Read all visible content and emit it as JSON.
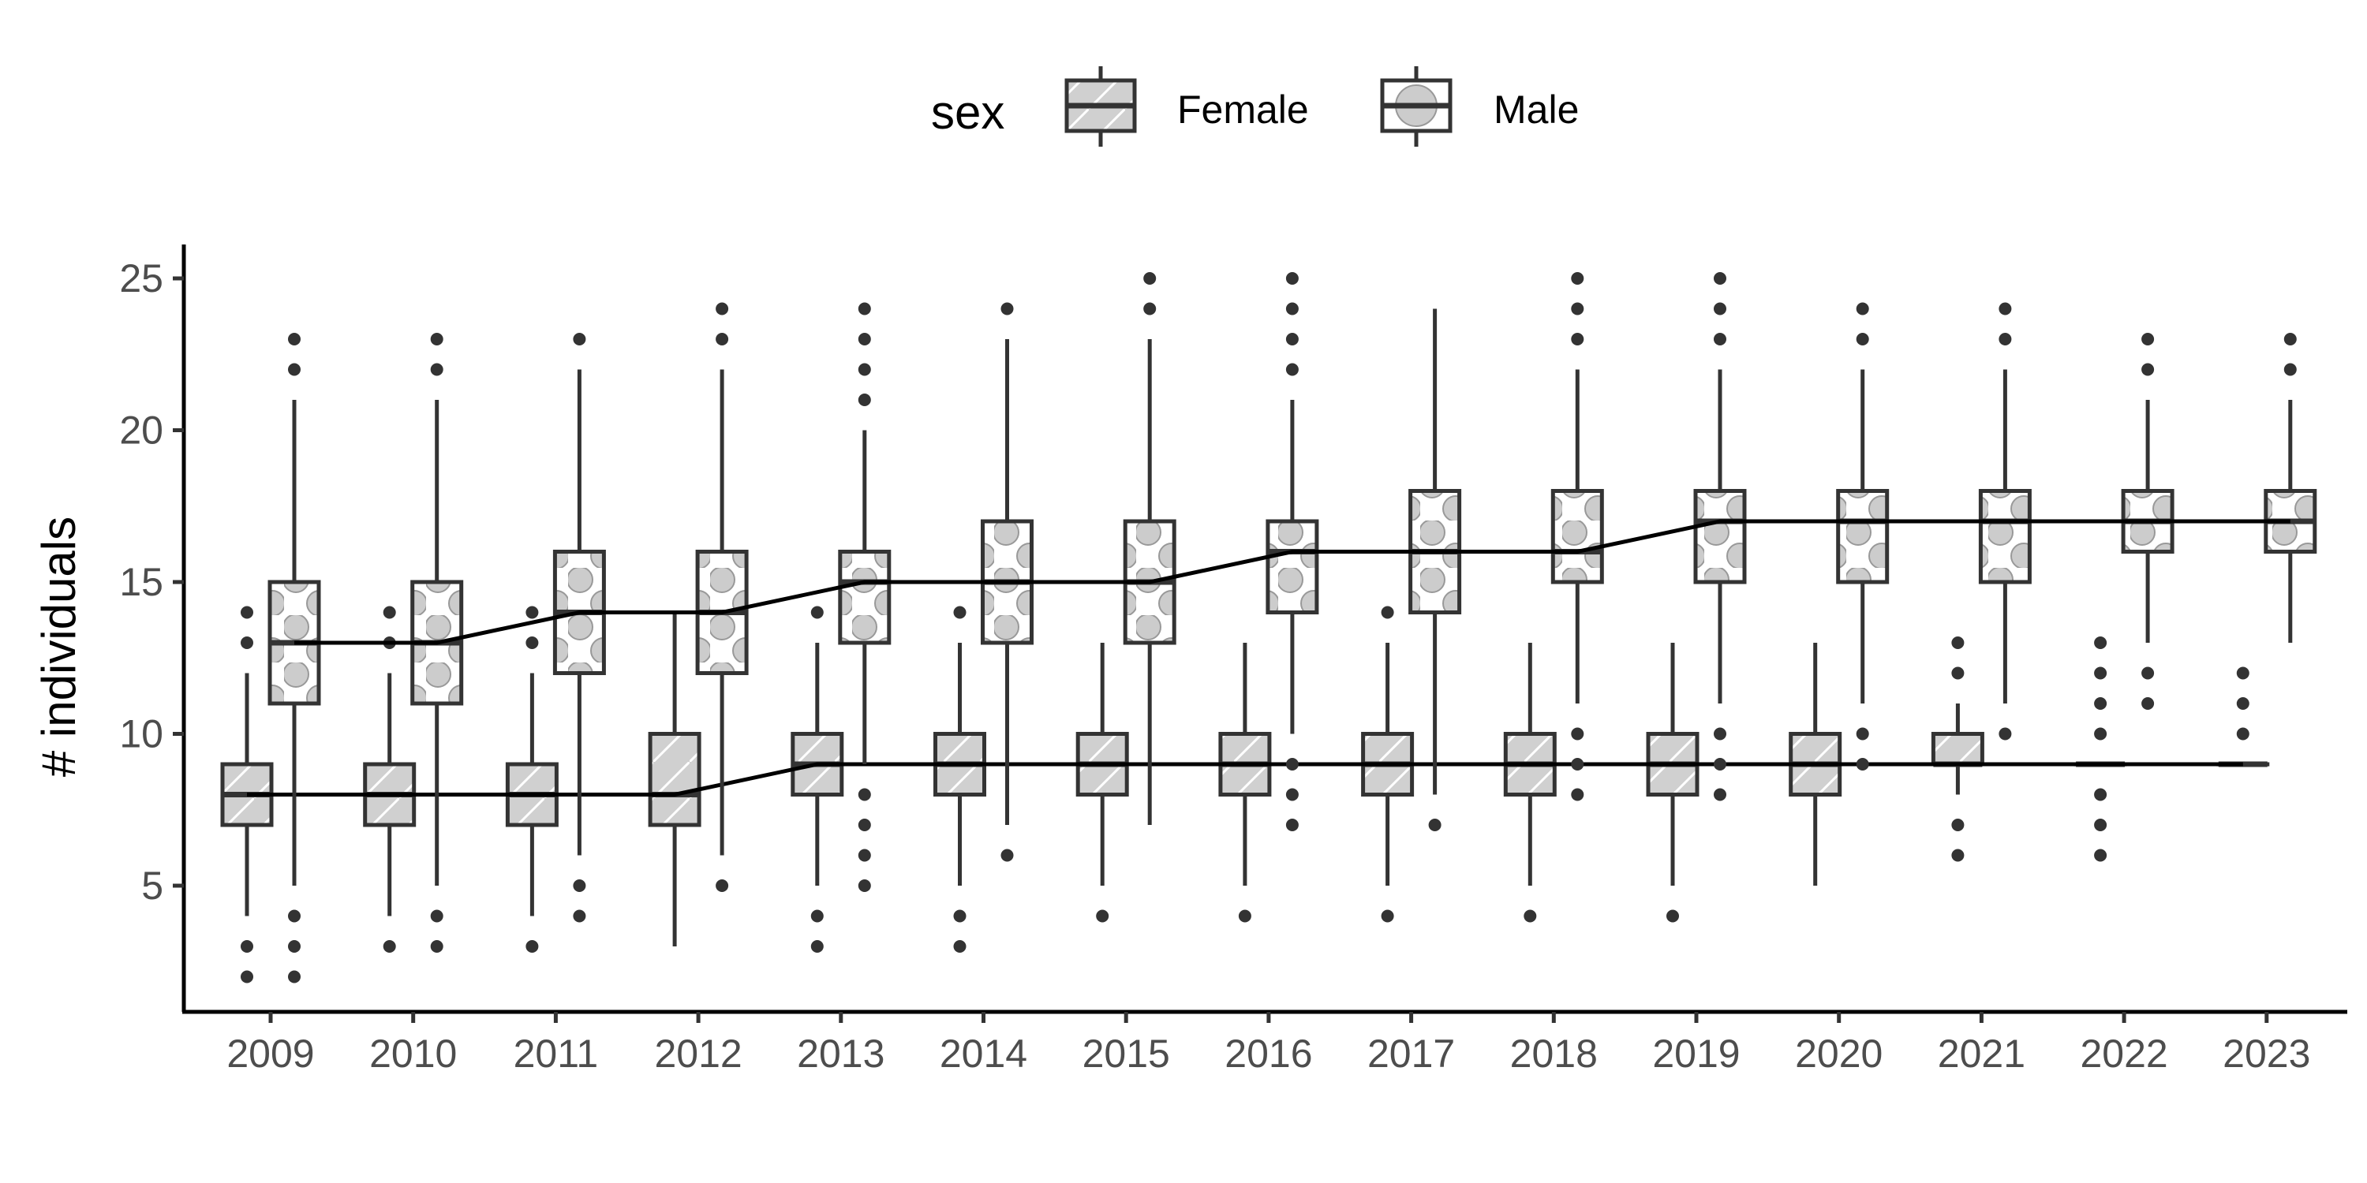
{
  "chart_data": {
    "type": "boxplot",
    "title": "",
    "xlabel": "",
    "ylabel": "# individuals",
    "ylim": [
      1,
      26
    ],
    "yticks": [
      5,
      10,
      15,
      20,
      25
    ],
    "grid": false,
    "legend": {
      "title": "sex",
      "position": "top",
      "entries": [
        "Female",
        "Male"
      ]
    },
    "categories": [
      "2009",
      "2010",
      "2011",
      "2012",
      "2013",
      "2014",
      "2015",
      "2016",
      "2017",
      "2018",
      "2019",
      "2020",
      "2021",
      "2022",
      "2023"
    ],
    "series": [
      {
        "name": "Female",
        "fill": "hatched",
        "boxes": [
          {
            "q1": 7,
            "median": 8,
            "q3": 9,
            "lower": 4,
            "upper": 12,
            "outliers": [
              2,
              3,
              13,
              14
            ]
          },
          {
            "q1": 7,
            "median": 8,
            "q3": 9,
            "lower": 4,
            "upper": 12,
            "outliers": [
              3,
              13,
              14
            ]
          },
          {
            "q1": 7,
            "median": 8,
            "q3": 9,
            "lower": 4,
            "upper": 12,
            "outliers": [
              3,
              13,
              14
            ]
          },
          {
            "q1": 7,
            "median": 8,
            "q3": 10,
            "lower": 3,
            "upper": 14,
            "outliers": []
          },
          {
            "q1": 8,
            "median": 9,
            "q3": 10,
            "lower": 5,
            "upper": 13,
            "outliers": [
              3,
              4,
              14
            ]
          },
          {
            "q1": 8,
            "median": 9,
            "q3": 10,
            "lower": 5,
            "upper": 13,
            "outliers": [
              3,
              4,
              14
            ]
          },
          {
            "q1": 8,
            "median": 9,
            "q3": 10,
            "lower": 5,
            "upper": 13,
            "outliers": [
              4
            ]
          },
          {
            "q1": 8,
            "median": 9,
            "q3": 10,
            "lower": 5,
            "upper": 13,
            "outliers": [
              4
            ]
          },
          {
            "q1": 8,
            "median": 9,
            "q3": 10,
            "lower": 5,
            "upper": 13,
            "outliers": [
              4,
              14
            ]
          },
          {
            "q1": 8,
            "median": 9,
            "q3": 10,
            "lower": 5,
            "upper": 13,
            "outliers": [
              4
            ]
          },
          {
            "q1": 8,
            "median": 9,
            "q3": 10,
            "lower": 5,
            "upper": 13,
            "outliers": [
              4
            ]
          },
          {
            "q1": 8,
            "median": 9,
            "q3": 10,
            "lower": 5,
            "upper": 13,
            "outliers": []
          },
          {
            "q1": 9,
            "median": 9,
            "q3": 10,
            "lower": 8,
            "upper": 11,
            "outliers": [
              6,
              7,
              12,
              13
            ]
          },
          {
            "q1": 9,
            "median": 9,
            "q3": 9,
            "lower": 9,
            "upper": 9,
            "outliers": [
              6,
              7,
              8,
              10,
              11,
              12,
              13
            ]
          },
          {
            "q1": 9,
            "median": 9,
            "q3": 9,
            "lower": 9,
            "upper": 9,
            "outliers": [
              10,
              11,
              12
            ]
          }
        ],
        "median_line": [
          8,
          8,
          8,
          8,
          9,
          9,
          9,
          9,
          9,
          9,
          9,
          9,
          9,
          9,
          9
        ]
      },
      {
        "name": "Male",
        "fill": "dotted",
        "boxes": [
          {
            "q1": 11,
            "median": 13,
            "q3": 15,
            "lower": 5,
            "upper": 21,
            "outliers": [
              2,
              3,
              4,
              22,
              23
            ]
          },
          {
            "q1": 11,
            "median": 13,
            "q3": 15,
            "lower": 5,
            "upper": 21,
            "outliers": [
              3,
              4,
              22,
              23
            ]
          },
          {
            "q1": 12,
            "median": 14,
            "q3": 16,
            "lower": 6,
            "upper": 22,
            "outliers": [
              4,
              5,
              23
            ]
          },
          {
            "q1": 12,
            "median": 14,
            "q3": 16,
            "lower": 6,
            "upper": 22,
            "outliers": [
              5,
              23,
              24
            ]
          },
          {
            "q1": 13,
            "median": 15,
            "q3": 16,
            "lower": 9,
            "upper": 20,
            "outliers": [
              5,
              6,
              7,
              8,
              21,
              22,
              23,
              24
            ]
          },
          {
            "q1": 13,
            "median": 15,
            "q3": 17,
            "lower": 7,
            "upper": 23,
            "outliers": [
              6,
              24
            ]
          },
          {
            "q1": 13,
            "median": 15,
            "q3": 17,
            "lower": 7,
            "upper": 23,
            "outliers": [
              24,
              25
            ]
          },
          {
            "q1": 14,
            "median": 16,
            "q3": 17,
            "lower": 10,
            "upper": 21,
            "outliers": [
              7,
              8,
              9,
              22,
              23,
              24,
              25
            ]
          },
          {
            "q1": 14,
            "median": 16,
            "q3": 18,
            "lower": 8,
            "upper": 24,
            "outliers": [
              7
            ]
          },
          {
            "q1": 15,
            "median": 16,
            "q3": 18,
            "lower": 11,
            "upper": 22,
            "outliers": [
              8,
              9,
              10,
              23,
              24,
              25
            ]
          },
          {
            "q1": 15,
            "median": 17,
            "q3": 18,
            "lower": 11,
            "upper": 22,
            "outliers": [
              8,
              9,
              10,
              23,
              24,
              25
            ]
          },
          {
            "q1": 15,
            "median": 17,
            "q3": 18,
            "lower": 11,
            "upper": 22,
            "outliers": [
              9,
              10,
              23,
              24
            ]
          },
          {
            "q1": 15,
            "median": 17,
            "q3": 18,
            "lower": 11,
            "upper": 22,
            "outliers": [
              10,
              23,
              24
            ]
          },
          {
            "q1": 16,
            "median": 17,
            "q3": 18,
            "lower": 13,
            "upper": 21,
            "outliers": [
              11,
              12,
              22,
              23
            ]
          },
          {
            "q1": 16,
            "median": 17,
            "q3": 18,
            "lower": 13,
            "upper": 21,
            "outliers": [
              22,
              23
            ]
          }
        ],
        "median_line": [
          13,
          13,
          14,
          14,
          15,
          15,
          15,
          16,
          16,
          16,
          17,
          17,
          17,
          17,
          17
        ]
      }
    ],
    "colors": {
      "box_fill_female": "#d0d0d0",
      "box_fill_male": "#ffffff",
      "box_stroke": "#333333",
      "dot_fill": "#cccccc",
      "median_line": "#000000",
      "outlier": "#333333"
    }
  }
}
